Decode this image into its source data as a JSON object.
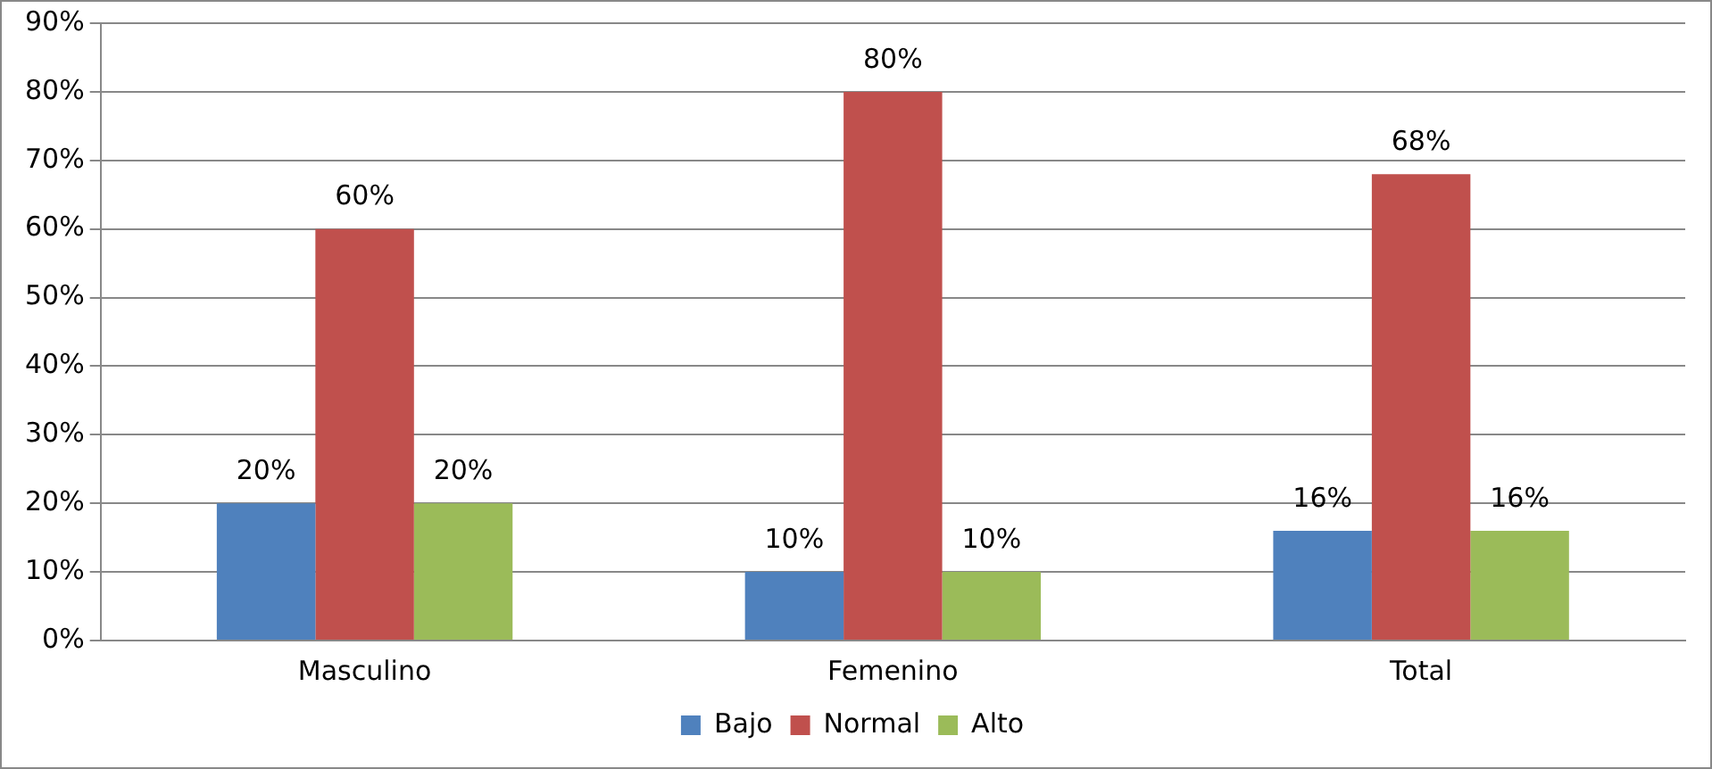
{
  "chart_data": {
    "type": "bar",
    "categories": [
      "Masculino",
      "Femenino",
      "Total"
    ],
    "series": [
      {
        "name": "Bajo",
        "color": "#4f81bd",
        "values": [
          20,
          10,
          16
        ],
        "value_labels": [
          "20%",
          "10%",
          "16%"
        ]
      },
      {
        "name": "Normal",
        "color": "#c0504d",
        "values": [
          60,
          80,
          68
        ],
        "value_labels": [
          "60%",
          "80%",
          "68%"
        ]
      },
      {
        "name": "Alto",
        "color": "#9bbb59",
        "values": [
          20,
          10,
          16
        ],
        "value_labels": [
          "20%",
          "10%",
          "16%"
        ]
      }
    ],
    "ylim": [
      0,
      90
    ],
    "yticks": [
      {
        "value": 0,
        "label": "0%"
      },
      {
        "value": 10,
        "label": "10%"
      },
      {
        "value": 20,
        "label": "20%"
      },
      {
        "value": 30,
        "label": "30%"
      },
      {
        "value": 40,
        "label": "40%"
      },
      {
        "value": 50,
        "label": "50%"
      },
      {
        "value": 60,
        "label": "60%"
      },
      {
        "value": 70,
        "label": "70%"
      },
      {
        "value": 80,
        "label": "80%"
      },
      {
        "value": 90,
        "label": "90%"
      }
    ],
    "grid": "y",
    "legend": "bottom"
  }
}
